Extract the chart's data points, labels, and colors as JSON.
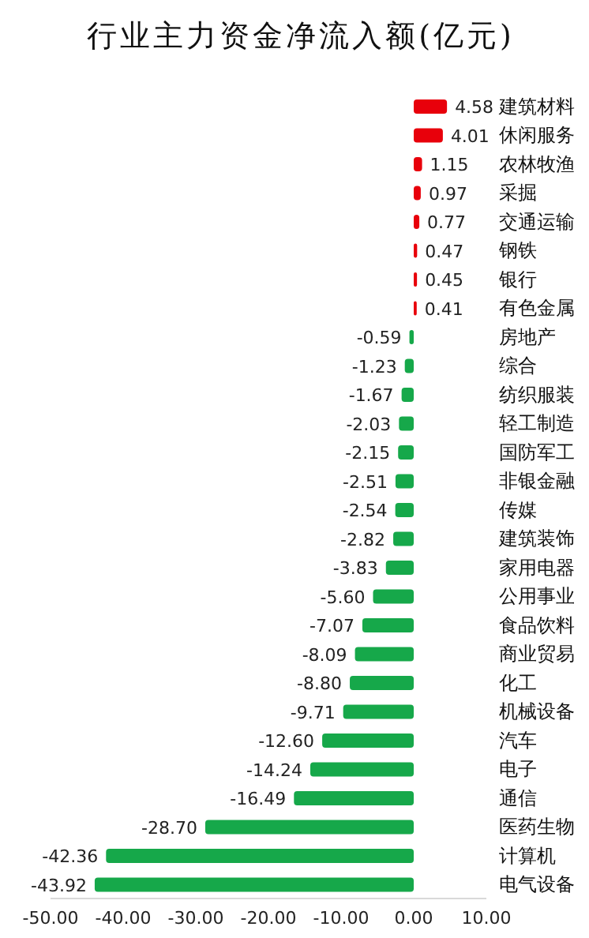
{
  "chart_data": {
    "type": "bar",
    "orientation": "horizontal",
    "title": "行业主力资金净流入额(亿元)",
    "categories": [
      "建筑材料",
      "休闲服务",
      "农林牧渔",
      "采掘",
      "交通运输",
      "钢铁",
      "银行",
      "有色金属",
      "房地产",
      "综合",
      "纺织服装",
      "轻工制造",
      "国防军工",
      "非银金融",
      "传媒",
      "建筑装饰",
      "家用电器",
      "公用事业",
      "食品饮料",
      "商业贸易",
      "化工",
      "机械设备",
      "汽车",
      "电子",
      "通信",
      "医药生物",
      "计算机",
      "电气设备"
    ],
    "values": [
      4.58,
      4.01,
      1.15,
      0.97,
      0.77,
      0.47,
      0.45,
      0.41,
      -0.59,
      -1.23,
      -1.67,
      -2.03,
      -2.15,
      -2.51,
      -2.54,
      -2.82,
      -3.83,
      -5.6,
      -7.07,
      -8.09,
      -8.8,
      -9.71,
      -12.6,
      -14.24,
      -16.49,
      -28.7,
      -42.36,
      -43.92
    ],
    "value_labels": [
      "4.58",
      "4.01",
      "1.15",
      "0.97",
      "0.77",
      "0.47",
      "0.45",
      "0.41",
      "-0.59",
      "-1.23",
      "-1.67",
      "-2.03",
      "-2.15",
      "-2.51",
      "-2.54",
      "-2.82",
      "-3.83",
      "-5.60",
      "-7.07",
      "-8.09",
      "-8.80",
      "-9.71",
      "-12.60",
      "-14.24",
      "-16.49",
      "-28.70",
      "-42.36",
      "-43.92"
    ],
    "colors": [
      "#e8000b",
      "#e8000b",
      "#e8000b",
      "#e8000b",
      "#e8000b",
      "#e8000b",
      "#e8000b",
      "#e8000b",
      "#16a84a",
      "#16a84a",
      "#16a84a",
      "#16a84a",
      "#16a84a",
      "#16a84a",
      "#16a84a",
      "#16a84a",
      "#16a84a",
      "#16a84a",
      "#16a84a",
      "#16a84a",
      "#16a84a",
      "#16a84a",
      "#16a84a",
      "#16a84a",
      "#16a84a",
      "#16a84a",
      "#16a84a",
      "#16a84a"
    ],
    "xlim": [
      -50,
      10
    ],
    "xticks": [
      {
        "value": -50,
        "label": "-50.00"
      },
      {
        "value": -40,
        "label": "-40.00"
      },
      {
        "value": -30,
        "label": "-30.00"
      },
      {
        "value": -20,
        "label": "-20.00"
      },
      {
        "value": -10,
        "label": "-10.00"
      },
      {
        "value": 0,
        "label": "0.00"
      },
      {
        "value": 10,
        "label": "10.00"
      }
    ],
    "grid": false,
    "legend": false
  }
}
